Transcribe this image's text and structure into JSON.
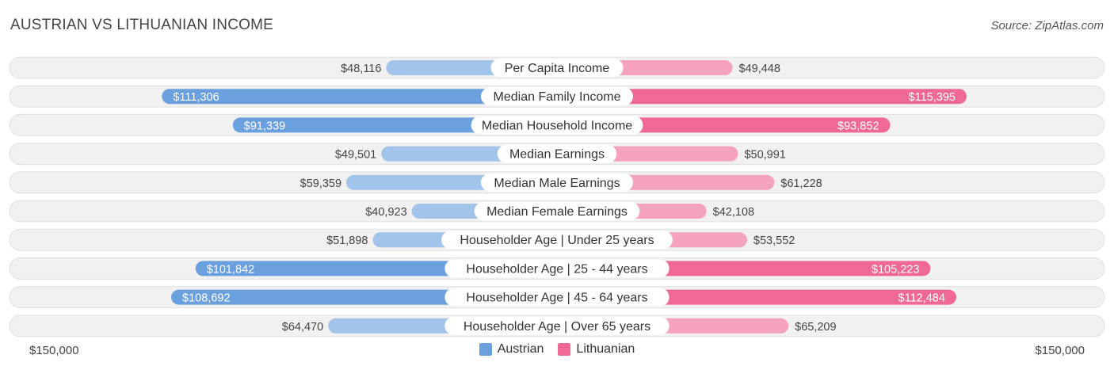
{
  "title": "AUSTRIAN VS LITHUANIAN INCOME",
  "source": "Source: ZipAtlas.com",
  "colors": {
    "austrian_light": "#a3c4ea",
    "austrian_dark": "#6aa0de",
    "lithuanian_light": "#f5a3bd",
    "lithuanian_dark": "#f06894"
  },
  "chart_data": {
    "type": "bar",
    "orientation": "horizontal-diverging",
    "categories": [
      "Per Capita Income",
      "Median Family Income",
      "Median Household Income",
      "Median Earnings",
      "Median Male Earnings",
      "Median Female Earnings",
      "Householder Age | Under 25 years",
      "Householder Age | 25 - 44 years",
      "Householder Age | 45 - 64 years",
      "Householder Age | Over 65 years"
    ],
    "series": [
      {
        "name": "Austrian",
        "values": [
          48116,
          111306,
          91339,
          49501,
          59359,
          40923,
          51898,
          101842,
          108692,
          64470
        ],
        "labels": [
          "$48,116",
          "$111,306",
          "$91,339",
          "$49,501",
          "$59,359",
          "$40,923",
          "$51,898",
          "$101,842",
          "$108,692",
          "$64,470"
        ]
      },
      {
        "name": "Lithuanian",
        "values": [
          49448,
          115395,
          93852,
          50991,
          61228,
          42108,
          53552,
          105223,
          112484,
          65209
        ],
        "labels": [
          "$49,448",
          "$115,395",
          "$93,852",
          "$50,991",
          "$61,228",
          "$42,108",
          "$53,552",
          "$105,223",
          "$112,484",
          "$65,209"
        ]
      }
    ],
    "xlim": [
      -150000,
      150000
    ],
    "axis_min_label": "$150,000",
    "axis_max_label": "$150,000",
    "legend_position": "bottom-center"
  }
}
